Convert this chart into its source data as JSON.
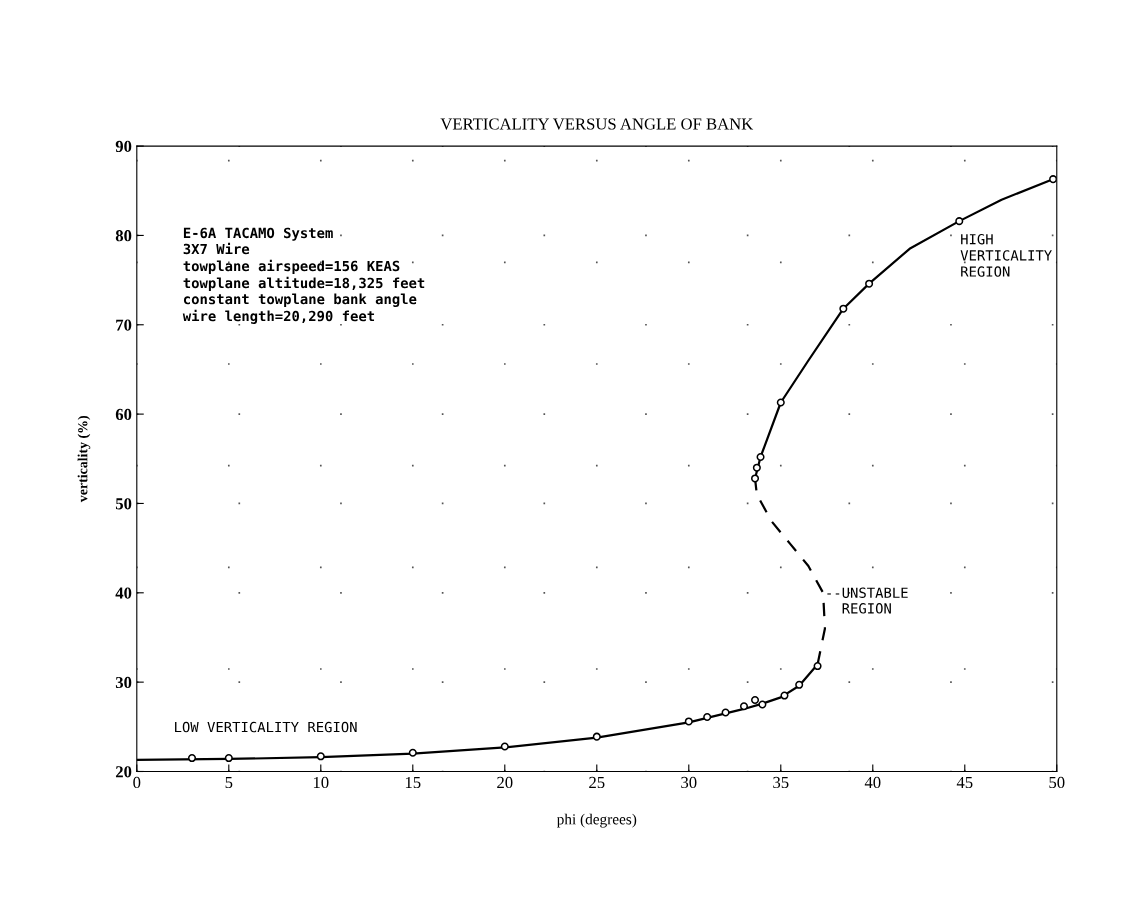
{
  "chart_data": {
    "type": "line",
    "title": "VERTICALITY VERSUS ANGLE OF BANK",
    "xlabel": "phi (degrees)",
    "ylabel": "verticality (%)",
    "xlim": [
      0,
      50
    ],
    "ylim": [
      20,
      90
    ],
    "xticks": [
      0,
      5,
      10,
      15,
      20,
      25,
      30,
      35,
      40,
      45,
      50
    ],
    "yticks": [
      20,
      30,
      40,
      50,
      60,
      70,
      80,
      90
    ],
    "grid": true,
    "series": [
      {
        "color": "#000000",
        "line_style": "solid",
        "marker": "none",
        "x": [
          0,
          5,
          10,
          15,
          20,
          25,
          30,
          33,
          34,
          35,
          36,
          37
        ],
        "values": [
          21.3,
          21.4,
          21.6,
          22,
          22.7,
          23.8,
          25.5,
          27,
          27.6,
          28.3,
          29.6,
          32
        ]
      },
      {
        "color": "#000000",
        "line_style": "dashed",
        "marker": "none",
        "x": [
          37,
          37.4,
          37.3,
          36.5,
          35.5,
          34.5,
          33.7,
          33.6
        ],
        "values": [
          32,
          36,
          40,
          43,
          45.5,
          48,
          51,
          52.8
        ]
      },
      {
        "color": "#000000",
        "line_style": "solid",
        "marker": "none",
        "x": [
          33.6,
          33.9,
          35,
          36.5,
          38.4,
          39.8,
          42,
          44.7,
          47,
          49.8
        ],
        "values": [
          52.8,
          55.2,
          61.3,
          66,
          71.8,
          74.6,
          78.5,
          81.6,
          84,
          86.3
        ]
      },
      {
        "type": "scatter",
        "color": "#000000",
        "marker": "circle",
        "x": [
          3,
          5,
          10,
          15,
          20,
          25,
          30,
          31,
          32,
          33,
          33.6,
          34,
          35.2,
          36,
          37,
          33.6,
          33.7,
          33.9,
          35,
          38.4,
          39.8,
          44.7,
          49.8
        ],
        "values": [
          21.5,
          21.5,
          21.7,
          22.1,
          22.8,
          23.9,
          25.6,
          26.1,
          26.6,
          27.3,
          28,
          27.5,
          28.5,
          29.7,
          31.8,
          52.8,
          54,
          55.2,
          61.3,
          71.8,
          74.6,
          81.6,
          86.3
        ]
      }
    ],
    "annotations": [
      "E-6A TACAMO System\n3X7 Wire\ntowplane airspeed=156 KEAS\ntowplane altitude=18,325 feet\nconstant towplane bank angle\nwire length=20,290 feet",
      "LOW VERTICALITY REGION",
      "HIGH\nVERTICALITY\nREGION",
      {
        "text": "--UNSTABLE\n  REGION",
        "x": 37.4,
        "y": 39
      }
    ]
  }
}
